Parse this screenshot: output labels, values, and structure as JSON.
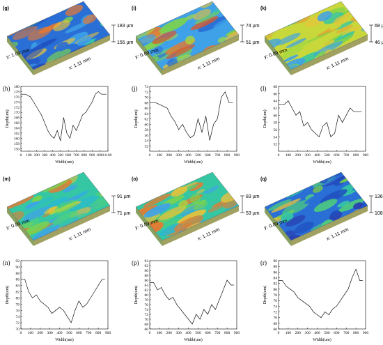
{
  "surfaces": [
    {
      "id": "g",
      "label": "(g)",
      "z_hi": "183 µm",
      "z_lo": "155 µm",
      "y_axis": "y: 1.09 mm",
      "x_axis": "x: 1.11 mm",
      "palette": "mixed-blue"
    },
    {
      "id": "i",
      "label": "(i)",
      "z_hi": "74 µm",
      "z_lo": "51 µm",
      "y_axis": "y: 0.89 mm",
      "x_axis": "x: 1.11 mm",
      "palette": "mixed"
    },
    {
      "id": "k",
      "label": "(k)",
      "z_hi": "68 µm",
      "z_lo": "46 µm",
      "y_axis": "y: 0.89 mm",
      "x_axis": "x: 1.11 mm",
      "palette": "yellow"
    },
    {
      "id": "m",
      "label": "(m)",
      "z_hi": "91 µm",
      "z_lo": "71 µm",
      "y_axis": "y: 0.89 mm",
      "x_axis": "x: 1.11 mm",
      "palette": "green"
    },
    {
      "id": "o",
      "label": "(o)",
      "z_hi": "83 µm",
      "z_lo": "53 µm",
      "y_axis": "y: 0.89 mm",
      "x_axis": "x: 1.11 mm",
      "palette": "green"
    },
    {
      "id": "q",
      "label": "(q)",
      "z_hi": "136 µm",
      "z_lo": "108 µm",
      "y_axis": "y: 0.89 mm",
      "x_axis": "x: 1.11 mm",
      "palette": "blue"
    }
  ],
  "chart_data": [
    {
      "id": "h",
      "label": "(h)",
      "type": "line",
      "xlabel": "Width(um)",
      "ylabel": "Depth(um)",
      "xlim": [
        0,
        1100
      ],
      "ylim": [
        155,
        180
      ],
      "xticks": [
        "0",
        "100",
        "200",
        "300",
        "400",
        "500",
        "600",
        "700",
        "800",
        "900",
        "1000",
        "1100"
      ],
      "yticks": [
        "156",
        "158",
        "160",
        "162",
        "164",
        "166",
        "168",
        "170",
        "172",
        "174",
        "176",
        "178",
        "180"
      ],
      "x": [
        0,
        60,
        120,
        180,
        220,
        260,
        300,
        340,
        380,
        420,
        460,
        500,
        540,
        580,
        620,
        660,
        700,
        740,
        780,
        820,
        860,
        900,
        940,
        980,
        1020,
        1080
      ],
      "y": [
        177,
        177,
        176,
        173,
        171,
        169,
        166,
        163,
        161,
        160,
        163,
        159,
        168,
        162,
        160,
        165,
        163,
        166,
        169,
        170,
        172,
        174,
        177,
        178,
        177,
        177
      ]
    },
    {
      "id": "j",
      "label": "(j)",
      "type": "line",
      "xlabel": "Width(um)",
      "ylabel": "Depth(um)",
      "xlim": [
        0,
        900
      ],
      "ylim": [
        50,
        74
      ],
      "xticks": [
        "0",
        "100",
        "200",
        "300",
        "400",
        "500",
        "600",
        "700",
        "800",
        "900"
      ],
      "yticks": [
        "52",
        "54",
        "56",
        "58",
        "60",
        "62",
        "64",
        "66",
        "68",
        "70",
        "72",
        "74"
      ],
      "x": [
        0,
        60,
        120,
        180,
        220,
        260,
        300,
        340,
        380,
        420,
        460,
        500,
        540,
        580,
        620,
        660,
        700,
        740,
        780,
        820,
        860
      ],
      "y": [
        68,
        68,
        67,
        66,
        63,
        61,
        58,
        60,
        57,
        55,
        56,
        62,
        57,
        63,
        54,
        60,
        62,
        70,
        72,
        68,
        68
      ]
    },
    {
      "id": "l",
      "label": "(l)",
      "type": "line",
      "xlabel": "Width(um)",
      "ylabel": "Depth(um)",
      "xlim": [
        0,
        900
      ],
      "ylim": [
        50,
        68
      ],
      "xticks": [
        "0",
        "100",
        "200",
        "300",
        "400",
        "500",
        "600",
        "700",
        "800",
        "900"
      ],
      "yticks": [
        "52",
        "54",
        "56",
        "58",
        "60",
        "62",
        "64",
        "66",
        "68"
      ],
      "x": [
        0,
        60,
        100,
        140,
        180,
        220,
        260,
        300,
        340,
        380,
        420,
        460,
        500,
        540,
        580,
        620,
        660,
        700,
        740,
        780,
        820,
        860
      ],
      "y": [
        63,
        63,
        64,
        62,
        60,
        61,
        57,
        58,
        56,
        55,
        54,
        57,
        58,
        54,
        55,
        60,
        58,
        60,
        62,
        61,
        61,
        61
      ]
    },
    {
      "id": "n",
      "label": "(n)",
      "type": "line",
      "xlabel": "Width(um)",
      "ylabel": "Depth(um)",
      "xlim": [
        0,
        900
      ],
      "ylim": [
        70,
        92
      ],
      "xticks": [
        "0",
        "100",
        "200",
        "300",
        "400",
        "500",
        "600",
        "700",
        "800",
        "900"
      ],
      "yticks": [
        "70",
        "72",
        "74",
        "76",
        "78",
        "80",
        "82",
        "84",
        "86",
        "88",
        "90",
        "92"
      ],
      "x": [
        0,
        40,
        80,
        120,
        160,
        200,
        240,
        280,
        320,
        360,
        400,
        440,
        480,
        520,
        560,
        600,
        640,
        680,
        720,
        760,
        800,
        840,
        870
      ],
      "y": [
        86,
        86,
        82,
        80,
        81,
        79,
        78,
        77,
        75,
        76,
        77,
        76,
        74,
        72,
        76,
        79,
        77,
        78,
        80,
        82,
        84,
        86,
        86
      ]
    },
    {
      "id": "p",
      "label": "(p)",
      "type": "line",
      "xlabel": "Width(um)",
      "ylabel": "Depth(um)",
      "xlim": [
        0,
        900
      ],
      "ylim": [
        66,
        94
      ],
      "xticks": [
        "0",
        "100",
        "200",
        "300",
        "400",
        "500",
        "600",
        "700",
        "800",
        "900"
      ],
      "yticks": [
        "66",
        "68",
        "70",
        "72",
        "74",
        "76",
        "78",
        "80",
        "82",
        "84",
        "86",
        "88",
        "90",
        "92",
        "94"
      ],
      "x": [
        0,
        40,
        80,
        120,
        160,
        200,
        240,
        280,
        320,
        360,
        400,
        440,
        480,
        520,
        560,
        600,
        640,
        680,
        720,
        760,
        800,
        840,
        870
      ],
      "y": [
        85,
        85,
        82,
        83,
        80,
        78,
        79,
        76,
        74,
        72,
        70,
        68,
        72,
        70,
        74,
        72,
        76,
        74,
        78,
        82,
        86,
        84,
        84
      ]
    },
    {
      "id": "r",
      "label": "(r)",
      "type": "line",
      "xlabel": "Width(um)",
      "ylabel": "Depth(um)",
      "xlim": [
        0,
        900
      ],
      "ylim": [
        66,
        90
      ],
      "xticks": [
        "0",
        "100",
        "200",
        "300",
        "400",
        "500",
        "600",
        "700",
        "800",
        "900"
      ],
      "yticks": [
        "66",
        "68",
        "70",
        "72",
        "74",
        "76",
        "78",
        "80",
        "82",
        "84",
        "86",
        "88",
        "90"
      ],
      "x": [
        0,
        40,
        80,
        120,
        160,
        200,
        240,
        280,
        320,
        360,
        400,
        440,
        480,
        520,
        560,
        600,
        640,
        680,
        720,
        760,
        800,
        840,
        870
      ],
      "y": [
        83,
        83,
        81,
        80,
        79,
        77,
        76,
        75,
        74,
        72,
        71,
        70,
        72,
        71,
        73,
        74,
        76,
        78,
        80,
        84,
        87,
        83,
        83
      ]
    }
  ]
}
